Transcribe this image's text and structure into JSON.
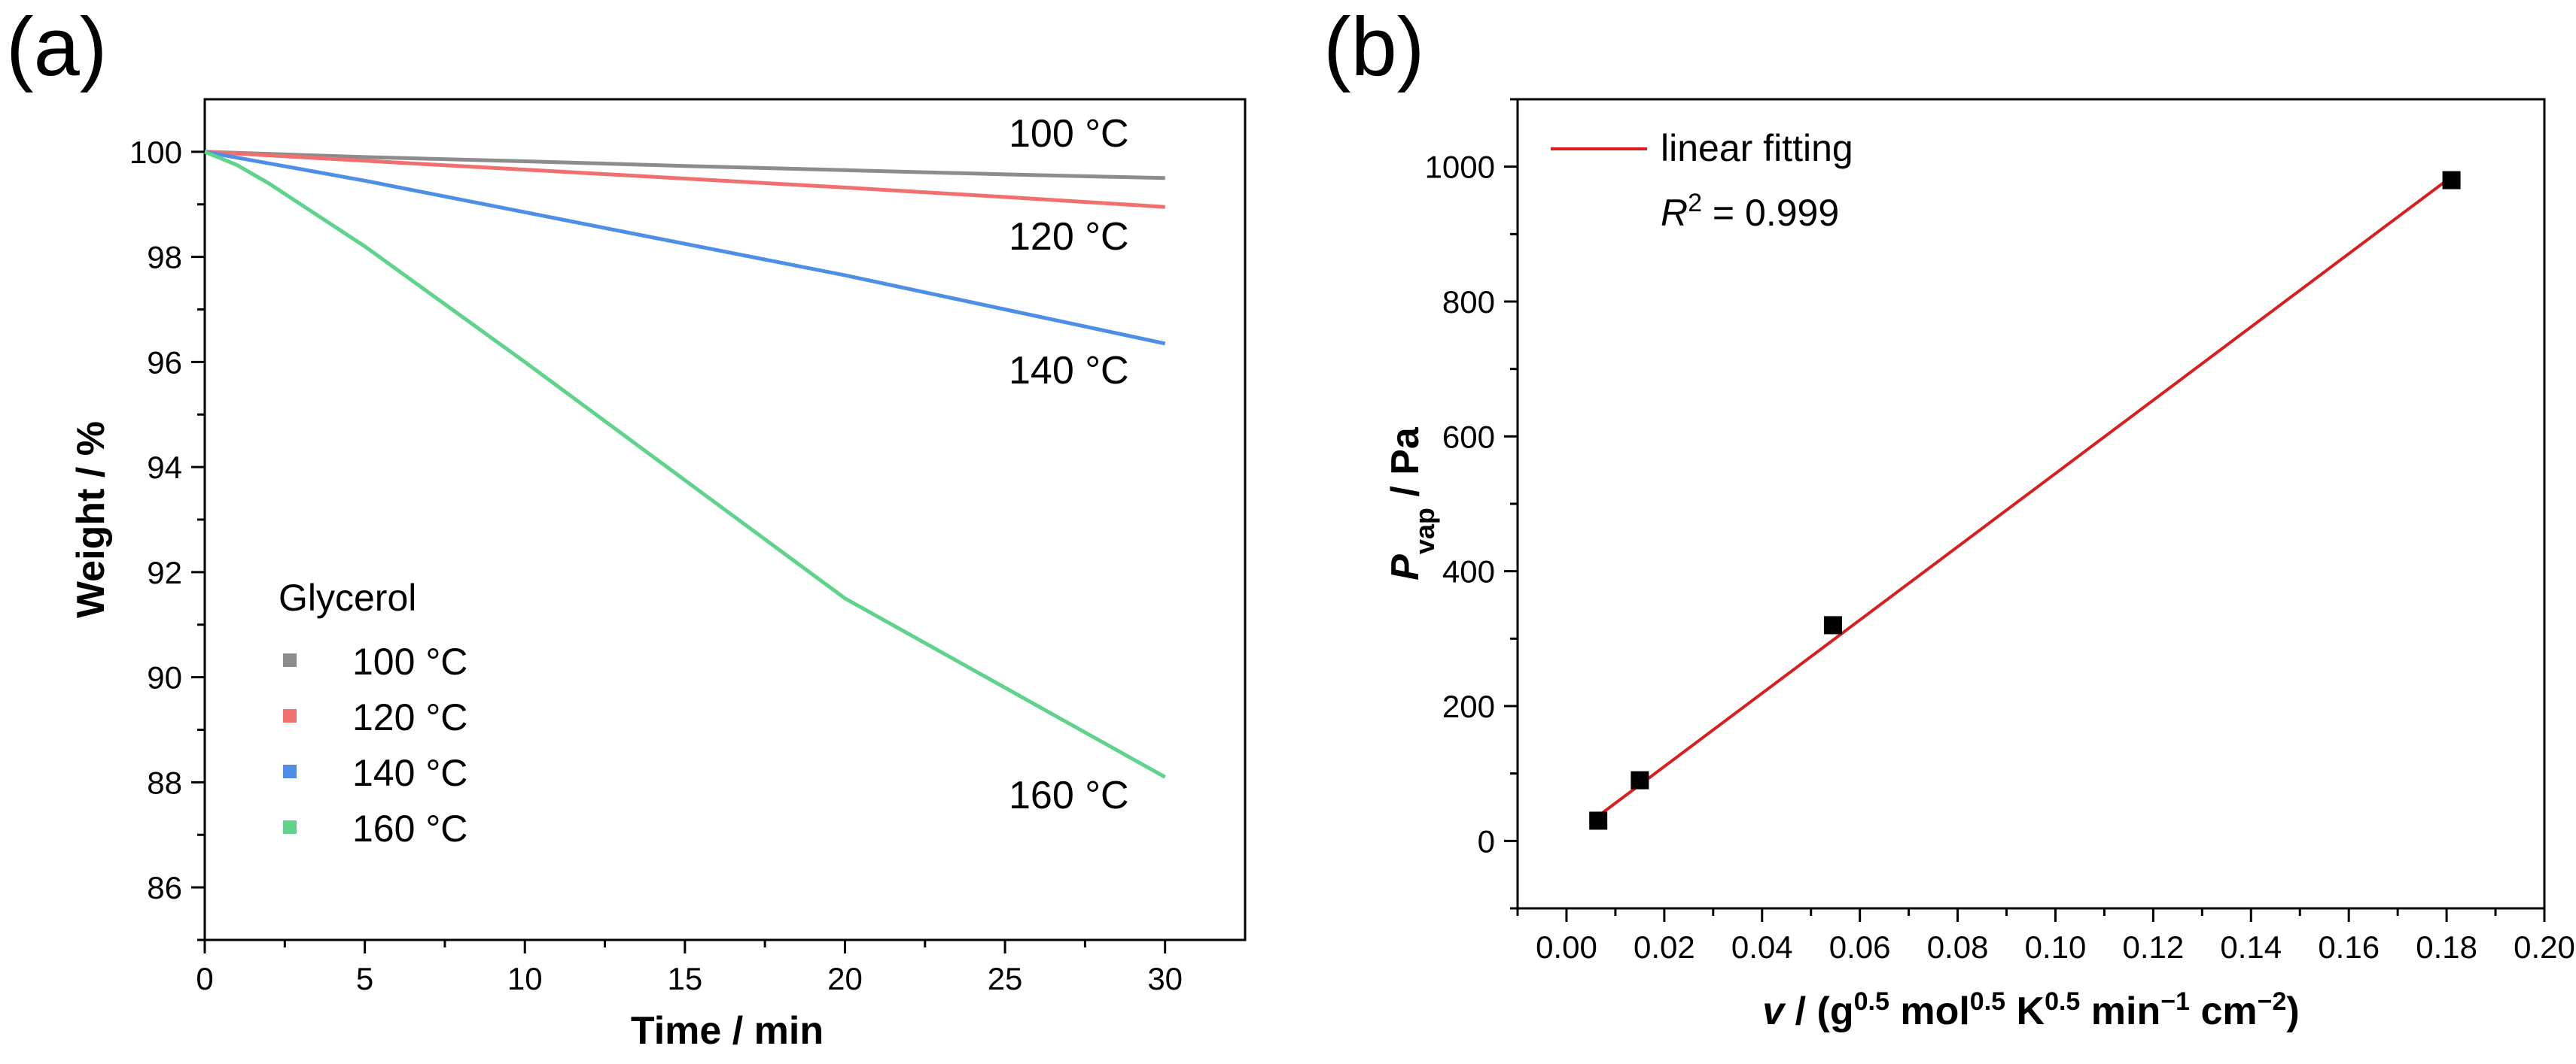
{
  "panels": {
    "a_label": "(a)",
    "b_label": "(b)"
  },
  "chart_data": [
    {
      "type": "line",
      "panel": "(a)",
      "title": "",
      "xlabel": "Time / min",
      "ylabel": "Weight / %",
      "xlim": [
        0,
        32.5
      ],
      "ylim": [
        85,
        101
      ],
      "xticks": [
        0,
        5,
        10,
        15,
        20,
        25,
        30
      ],
      "yticks": [
        86,
        88,
        90,
        92,
        94,
        96,
        98,
        100
      ],
      "legend": {
        "title": "Glycerol",
        "placement": "bottom-left"
      },
      "series": [
        {
          "name": "100 °C",
          "label": "100 °C",
          "color": "#8c8c8c",
          "x": [
            0,
            5,
            10,
            15,
            20,
            25,
            30
          ],
          "y": [
            100,
            99.9,
            99.82,
            99.73,
            99.65,
            99.57,
            99.5
          ]
        },
        {
          "name": "120 °C",
          "label": "120 °C",
          "color": "#f07070",
          "x": [
            0,
            5,
            10,
            15,
            20,
            25,
            30
          ],
          "y": [
            100,
            99.83,
            99.66,
            99.49,
            99.32,
            99.14,
            98.95
          ]
        },
        {
          "name": "140 °C",
          "label": "140 °C",
          "color": "#4d8fe6",
          "x": [
            0,
            5,
            10,
            15,
            20,
            25,
            30
          ],
          "y": [
            100,
            99.45,
            98.85,
            98.25,
            97.65,
            97.0,
            96.35
          ]
        },
        {
          "name": "160 °C",
          "label": "160 °C",
          "color": "#5fd38a",
          "x": [
            0,
            1,
            2,
            3,
            5,
            10,
            15,
            20,
            25,
            30
          ],
          "y": [
            100,
            99.75,
            99.4,
            99.0,
            98.2,
            96.0,
            93.75,
            91.5,
            89.8,
            88.1
          ]
        }
      ]
    },
    {
      "type": "scatter",
      "panel": "(b)",
      "title": "",
      "xlabel_parts": {
        "pre": "v",
        "mid": " / (g",
        "e1": "0.5",
        "t2": " mol",
        "e2": "0.5",
        "t3": " K",
        "e3": "0.5",
        "t4": " min",
        "e4": "−1",
        "t5": " cm",
        "e5": "−2",
        "post": ")"
      },
      "ylabel_parts": {
        "main": "P",
        "sub": "vap",
        "rest": " / Pa"
      },
      "xlim": [
        -0.01,
        0.2
      ],
      "ylim": [
        -100,
        1100
      ],
      "xticks": [
        "0.00",
        "0.02",
        "0.04",
        "0.06",
        "0.08",
        "0.10",
        "0.12",
        "0.14",
        "0.16",
        "0.18",
        "0.20"
      ],
      "yticks": [
        0,
        200,
        400,
        600,
        800,
        1000
      ],
      "points": {
        "x": [
          0.0065,
          0.015,
          0.0545,
          0.181
        ],
        "y": [
          30,
          90,
          320,
          980
        ]
      },
      "fit": {
        "label": "linear fitting",
        "r2_prefix": "R",
        "r2_exp": "2",
        "r2_value": " = 0.999",
        "color": "#d62020",
        "x": [
          0.0065,
          0.181
        ],
        "y": [
          37,
          985
        ]
      },
      "legend": {
        "placement": "top-left"
      }
    }
  ]
}
